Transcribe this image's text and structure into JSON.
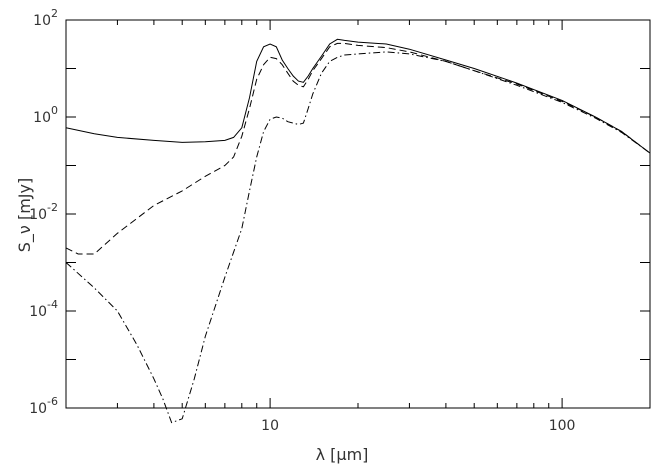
{
  "chart_data": {
    "type": "line",
    "title": "",
    "xlabel": "λ [μm]",
    "ylabel": "S_ν [mJy]",
    "x_scale": "log",
    "y_scale": "log",
    "xlim": [
      2,
      200
    ],
    "ylim": [
      1e-06,
      100
    ],
    "grid": false,
    "x_tick_labels": [
      {
        "value": 10,
        "label": "10"
      },
      {
        "value": 100,
        "label": "100"
      }
    ],
    "y_tick_labels": [
      {
        "value": 1e-06,
        "base": "10",
        "exp": "-6"
      },
      {
        "value": 0.0001,
        "base": "10",
        "exp": "-4"
      },
      {
        "value": 0.01,
        "base": "10",
        "exp": "-2"
      },
      {
        "value": 1,
        "base": "10",
        "exp": "0"
      },
      {
        "value": 100,
        "base": "10",
        "exp": "2"
      }
    ],
    "series": [
      {
        "style": "solid",
        "x": [
          2,
          2.5,
          3,
          4,
          5,
          6,
          7,
          7.5,
          8,
          8.5,
          9,
          9.5,
          10,
          10.5,
          11,
          11.5,
          12,
          12.5,
          13,
          13.5,
          14,
          15,
          16,
          17,
          18,
          20,
          25,
          30,
          40,
          50,
          70,
          100,
          130,
          160,
          200
        ],
        "y": [
          0.6,
          0.45,
          0.38,
          0.33,
          0.3,
          0.31,
          0.33,
          0.38,
          0.6,
          2.5,
          14,
          28,
          32,
          28,
          15,
          10,
          7,
          5.5,
          5.2,
          7,
          10,
          18,
          32,
          40,
          38,
          35,
          32,
          25,
          15,
          10,
          5,
          2.2,
          1.0,
          0.5,
          0.18
        ]
      },
      {
        "style": "dashed",
        "x": [
          2,
          2.2,
          2.5,
          3,
          4,
          5,
          6,
          7,
          7.5,
          8,
          8.5,
          9,
          9.5,
          10,
          10.5,
          11,
          11.5,
          12,
          12.5,
          13,
          13.5,
          14,
          15,
          16,
          17,
          18,
          20,
          25,
          30,
          40,
          50,
          70,
          100,
          130,
          160,
          200
        ],
        "y": [
          0.002,
          0.0015,
          0.0015,
          0.004,
          0.015,
          0.03,
          0.06,
          0.1,
          0.15,
          0.4,
          1.5,
          6,
          12,
          17,
          16,
          12,
          8,
          5.5,
          4.5,
          4.2,
          6,
          9,
          16,
          28,
          33,
          33,
          30,
          27,
          22,
          14,
          9,
          4.8,
          2.1,
          1.0,
          0.5,
          0.18
        ]
      },
      {
        "style": "dash-dot",
        "x": [
          2,
          2.5,
          3,
          3.5,
          4,
          4.3,
          4.6,
          5,
          5.5,
          6,
          7,
          8,
          8.5,
          9,
          9.5,
          10,
          10.5,
          11,
          11.5,
          12,
          12.5,
          13,
          13.5,
          14,
          15,
          16,
          17,
          18,
          20,
          25,
          30,
          40,
          50,
          70,
          100,
          130,
          160,
          200
        ],
        "y": [
          0.001,
          0.0003,
          0.0001,
          2e-05,
          4e-06,
          1.5e-06,
          5e-07,
          6e-07,
          4e-06,
          3e-05,
          0.0005,
          0.005,
          0.03,
          0.15,
          0.5,
          0.9,
          1.0,
          0.95,
          0.8,
          0.75,
          0.7,
          0.75,
          1.5,
          3,
          8,
          14,
          17,
          19,
          20,
          22,
          20,
          14,
          9,
          4.5,
          2.0,
          0.95,
          0.48,
          0.18
        ]
      }
    ]
  }
}
